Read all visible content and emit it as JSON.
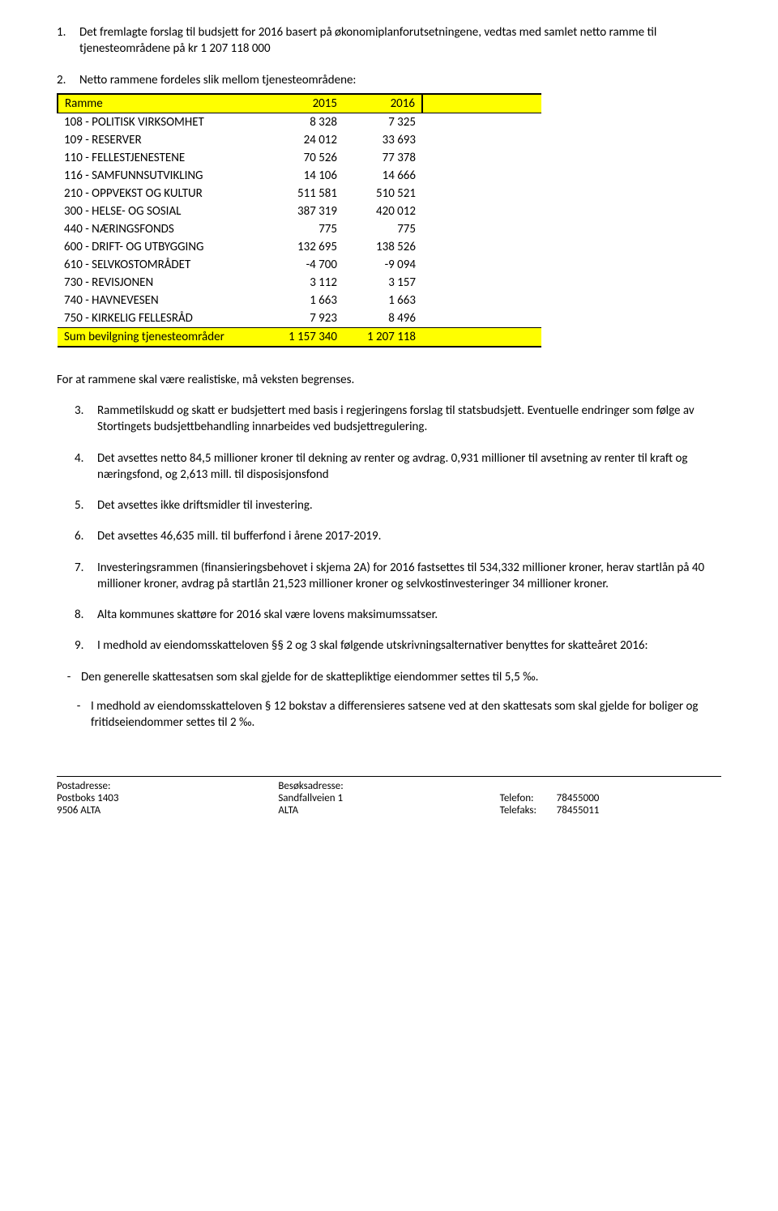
{
  "items": {
    "i1": {
      "num": "1.",
      "text": "Det fremlagte forslag til budsjett for 2016 basert på økonomiplanforutsetningene, vedtas med samlet netto ramme til tjenesteområdene på kr 1 207 118 000"
    },
    "i2": {
      "num": "2.",
      "text": "Netto rammene fordeles slik mellom tjenesteområdene:"
    },
    "i3": {
      "num": "3.",
      "text": "Rammetilskudd og skatt er budsjettert med basis i regjeringens forslag til statsbudsjett. Eventuelle endringer som følge av Stortingets budsjettbehandling            innarbeides ved budsjettregulering."
    },
    "i4": {
      "num": "4.",
      "text": "Det avsettes netto 84,5 millioner kroner til dekning av renter og avdrag. 0,931 millioner til avsetning av renter til kraft og næringsfond, og 2,613 mill. til disposisjonsfond"
    },
    "i5": {
      "num": "5.",
      "text": "Det avsettes ikke driftsmidler til investering."
    },
    "i6": {
      "num": "6.",
      "text": "Det avsettes 46,635 mill. til bufferfond i årene 2017-2019."
    },
    "i7": {
      "num": "7.",
      "text": "Investeringsrammen (finansieringsbehovet i skjema 2A) for 2016 fastsettes til 534,332 millioner kroner, herav startlån på 40 millioner kroner, avdrag på startlån 21,523 millioner kroner og selvkostinvesteringer 34 millioner kroner."
    },
    "i8": {
      "num": "8.",
      "text": "Alta kommunes skattøre for 2016 skal være lovens maksimumssatser."
    },
    "i9": {
      "num": "9.",
      "text": "I medhold av eiendomsskatteloven §§ 2 og 3 skal følgende utskrivningsalternativer benyttes for skatteåret 2016:"
    },
    "d1": {
      "dash": "-",
      "text": "Den generelle skattesatsen som skal gjelde for de skattepliktige eiendommer settes til 5,5 ‰."
    },
    "d2": {
      "dash": "-",
      "text": "I medhold av eiendomsskatteloven § 12 bokstav a differensieres satsene ved at den skattesats som skal gjelde for boliger og fritidseiendommer settes til 2 ‰."
    }
  },
  "between_para": "For at rammene skal være realistiske, må veksten begrenses.",
  "table": {
    "header": {
      "c1": "Ramme",
      "c2": "2015",
      "c3": "2016"
    },
    "rows": [
      {
        "c1": "108 - POLITISK VIRKSOMHET",
        "c2": "8 328",
        "c3": "7 325"
      },
      {
        "c1": "109 - RESERVER",
        "c2": "24 012",
        "c3": "33 693"
      },
      {
        "c1": "110 - FELLESTJENESTENE",
        "c2": "70 526",
        "c3": "77 378"
      },
      {
        "c1": "116 - SAMFUNNSUTVIKLING",
        "c2": "14 106",
        "c3": "14 666"
      },
      {
        "c1": "210 - OPPVEKST OG KULTUR",
        "c2": "511 581",
        "c3": "510 521"
      },
      {
        "c1": "300 - HELSE- OG SOSIAL",
        "c2": "387 319",
        "c3": "420 012"
      },
      {
        "c1": "440 - NÆRINGSFONDS",
        "c2": "775",
        "c3": "775"
      },
      {
        "c1": "600 - DRIFT- OG UTBYGGING",
        "c2": "132 695",
        "c3": "138 526"
      },
      {
        "c1": "610 - SELVKOSTOMRÅDET",
        "c2": "-4 700",
        "c3": "-9 094"
      },
      {
        "c1": "730 - REVISJONEN",
        "c2": "3 112",
        "c3": "3 157"
      },
      {
        "c1": "740 - HAVNEVESEN",
        "c2": "1 663",
        "c3": "1 663"
      },
      {
        "c1": "750 - KIRKELIG FELLESRÅD",
        "c2": "7 923",
        "c3": "8 496"
      }
    ],
    "sum": {
      "c1": "Sum bevilgning tjenesteområder",
      "c2": "1 157 340",
      "c3": "1 207 118"
    },
    "colors": {
      "highlight": "#ffff00",
      "border": "#000000"
    }
  },
  "footer": {
    "post_label": "Postadresse:",
    "post_l1": "Postboks 1403",
    "post_l2": "9506 ALTA",
    "visit_label": "Besøksadresse:",
    "visit_l1": "Sandfallveien 1",
    "visit_l2": "ALTA",
    "tel_label": "Telefon:",
    "tel_val": "78455000",
    "fax_label": "Telefaks:",
    "fax_val": "78455011"
  }
}
